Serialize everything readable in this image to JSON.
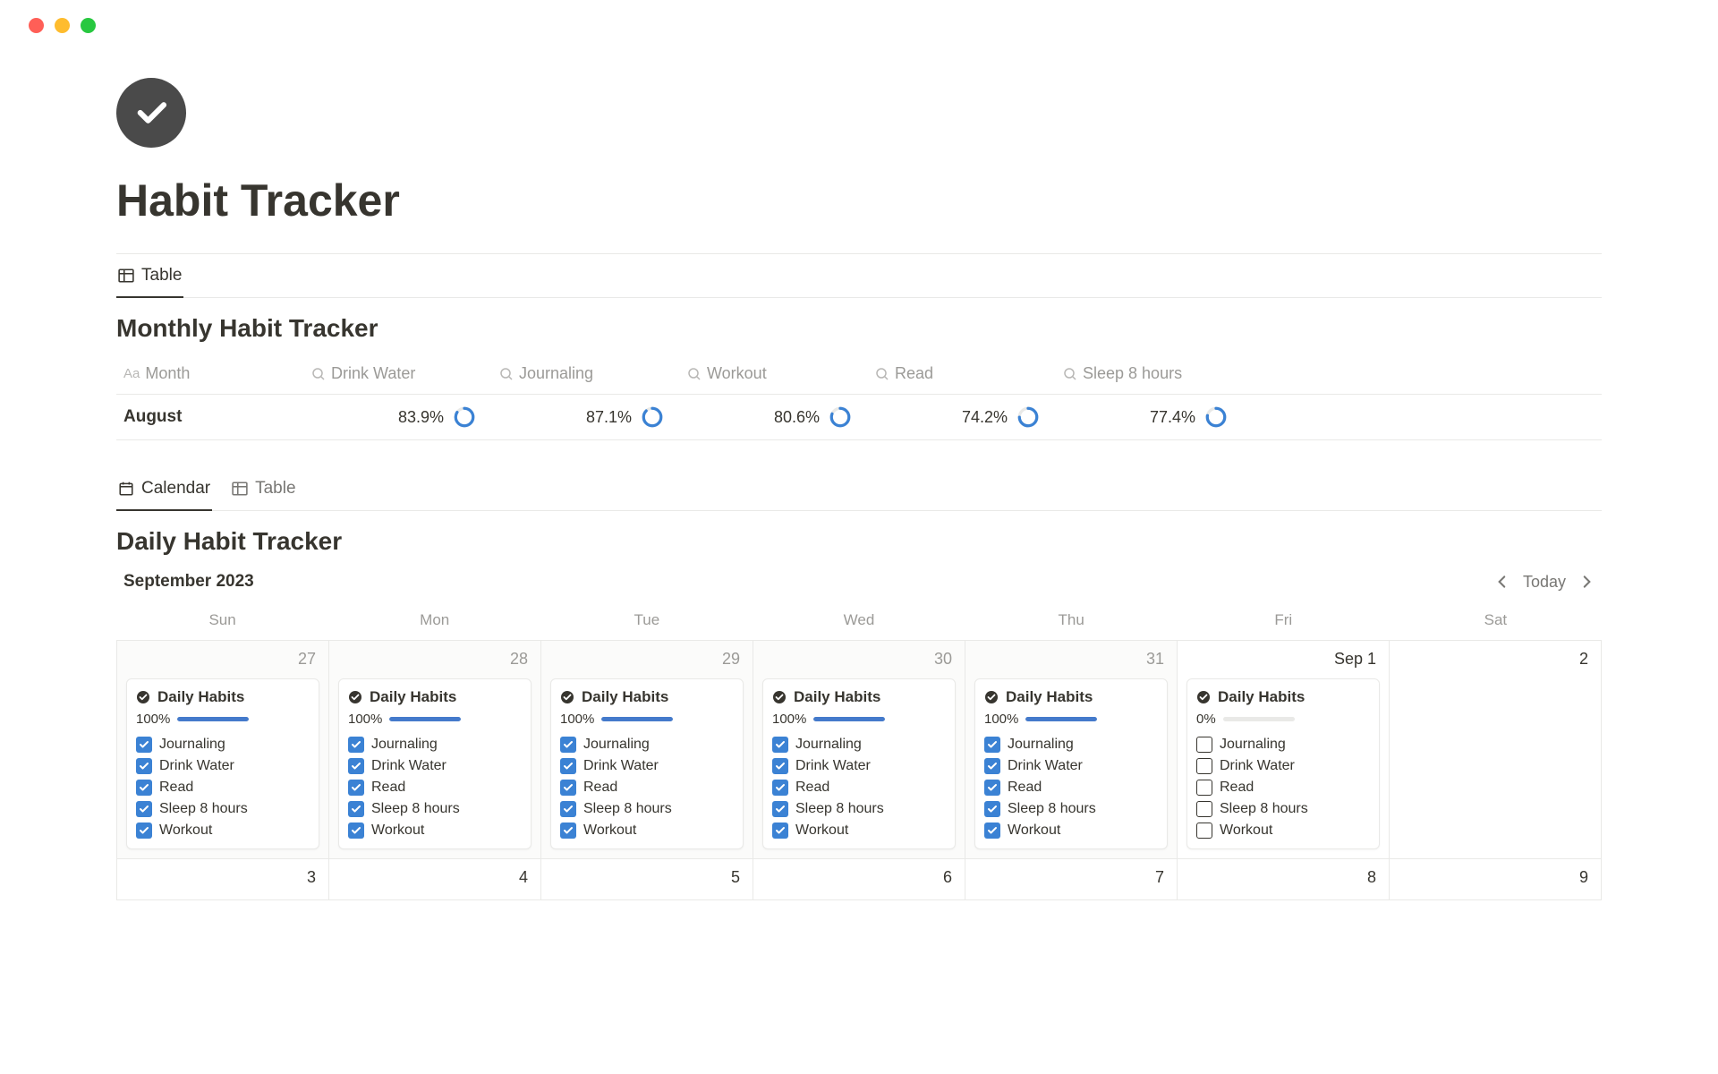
{
  "page": {
    "title": "Habit Tracker",
    "icon_bg": "#4a4a4a"
  },
  "monthly_section": {
    "view_tab": "Table",
    "title": "Monthly Habit Tracker",
    "columns": [
      {
        "type": "text",
        "label": "Month"
      },
      {
        "type": "rollup",
        "label": "Drink Water"
      },
      {
        "type": "rollup",
        "label": "Journaling"
      },
      {
        "type": "rollup",
        "label": "Workout"
      },
      {
        "type": "rollup",
        "label": "Read"
      },
      {
        "type": "rollup",
        "label": "Sleep 8 hours"
      }
    ],
    "row": {
      "month": "August",
      "metrics": [
        {
          "value": 83.9,
          "display": "83.9%"
        },
        {
          "value": 87.1,
          "display": "87.1%"
        },
        {
          "value": 80.6,
          "display": "80.6%"
        },
        {
          "value": 74.2,
          "display": "74.2%"
        },
        {
          "value": 77.4,
          "display": "77.4%"
        }
      ]
    },
    "ring_color": "#3b82d4",
    "ring_track": "#e9e9e7"
  },
  "daily_section": {
    "tabs": [
      {
        "label": "Calendar",
        "active": true
      },
      {
        "label": "Table",
        "active": false
      }
    ],
    "title": "Daily Habit Tracker",
    "month_label": "September 2023",
    "today_label": "Today",
    "weekdays": [
      "Sun",
      "Mon",
      "Tue",
      "Wed",
      "Thu",
      "Fri",
      "Sat"
    ],
    "card_title": "Daily Habits",
    "habits": [
      "Journaling",
      "Drink Water",
      "Read",
      "Sleep 8 hours",
      "Workout"
    ],
    "row1": [
      {
        "date": "27",
        "muted": true,
        "card": true,
        "progress": 100,
        "progress_label": "100%",
        "checked": true
      },
      {
        "date": "28",
        "muted": true,
        "card": true,
        "progress": 100,
        "progress_label": "100%",
        "checked": true
      },
      {
        "date": "29",
        "muted": true,
        "card": true,
        "progress": 100,
        "progress_label": "100%",
        "checked": true
      },
      {
        "date": "30",
        "muted": true,
        "card": true,
        "progress": 100,
        "progress_label": "100%",
        "checked": true
      },
      {
        "date": "31",
        "muted": true,
        "card": true,
        "progress": 100,
        "progress_label": "100%",
        "checked": true
      },
      {
        "date": "Sep 1",
        "muted": false,
        "card": true,
        "progress": 0,
        "progress_label": "0%",
        "checked": false
      },
      {
        "date": "2",
        "muted": false,
        "card": false
      }
    ],
    "row2": [
      {
        "date": "3"
      },
      {
        "date": "4"
      },
      {
        "date": "5"
      },
      {
        "date": "6"
      },
      {
        "date": "7"
      },
      {
        "date": "8"
      },
      {
        "date": "9"
      }
    ],
    "accent_color": "#3b82d4",
    "progress_color": "#447acb"
  }
}
